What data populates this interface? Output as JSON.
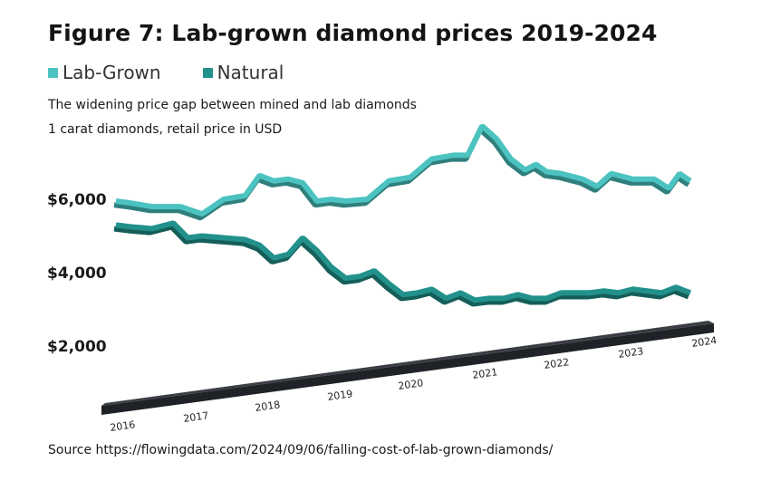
{
  "title": "Figure 7: Lab-grown diamond prices 2019-2024",
  "subtitle": "The widening price gap between mined and lab diamonds",
  "subtitle2": "1 carat diamonds, retail price in USD",
  "source": "Source https://flowingdata.com/2024/09/06/falling-cost-of-lab-grown-diamonds/",
  "colors": {
    "lab_grown": "#4cc3c0",
    "lab_grown_side": "#2f7f7d",
    "natural": "#22918c",
    "natural_side": "#155e5a",
    "axis_bar": "#1f2226"
  },
  "chart_data": {
    "type": "line",
    "title": "Figure 7: Lab-grown diamond prices 2019-2024",
    "ylabel": "retail price in USD",
    "xlabel": "",
    "ylim": [
      2000,
      8000
    ],
    "y_ticks": [
      {
        "value": 6000,
        "label": "$6,000"
      },
      {
        "value": 4000,
        "label": "$4,000"
      },
      {
        "value": 2000,
        "label": "$2,000"
      }
    ],
    "x_ticks": [
      {
        "value": 2016,
        "label": "2016"
      },
      {
        "value": 2017,
        "label": "2017"
      },
      {
        "value": 2018,
        "label": "2018"
      },
      {
        "value": 2019,
        "label": "2019"
      },
      {
        "value": 2020,
        "label": "2020"
      },
      {
        "value": 2021,
        "label": "2021"
      },
      {
        "value": 2022,
        "label": "2022"
      },
      {
        "value": 2023,
        "label": "2023"
      },
      {
        "value": 2024,
        "label": "2024"
      }
    ],
    "series": [
      {
        "name": "Lab-Grown",
        "x": [
          2016.0,
          2016.2,
          2016.5,
          2016.9,
          2017.2,
          2017.5,
          2017.8,
          2018.0,
          2018.2,
          2018.4,
          2018.6,
          2018.8,
          2019.0,
          2019.2,
          2019.5,
          2019.8,
          2020.1,
          2020.4,
          2020.7,
          2020.9,
          2021.1,
          2021.3,
          2021.5,
          2021.7,
          2021.85,
          2022.0,
          2022.2,
          2022.5,
          2022.7,
          2022.9,
          2023.2,
          2023.5,
          2023.7,
          2023.85,
          2024.0
        ],
        "values": [
          5950,
          5900,
          5800,
          5800,
          5600,
          6000,
          6100,
          6650,
          6500,
          6550,
          6450,
          5950,
          6000,
          5950,
          6000,
          6500,
          6600,
          7100,
          7200,
          7200,
          8000,
          7650,
          7100,
          6800,
          6950,
          6750,
          6700,
          6550,
          6350,
          6700,
          6550,
          6550,
          6300,
          6700,
          6500
        ]
      },
      {
        "name": "Natural",
        "x": [
          2016.0,
          2016.2,
          2016.5,
          2016.8,
          2017.0,
          2017.2,
          2017.5,
          2017.8,
          2018.0,
          2018.2,
          2018.4,
          2018.6,
          2018.8,
          2019.0,
          2019.2,
          2019.4,
          2019.6,
          2019.8,
          2020.0,
          2020.2,
          2020.4,
          2020.6,
          2020.8,
          2021.0,
          2021.2,
          2021.4,
          2021.6,
          2021.8,
          2022.0,
          2022.2,
          2022.4,
          2022.6,
          2022.8,
          2023.0,
          2023.2,
          2023.4,
          2023.6,
          2023.8,
          2024.0
        ],
        "values": [
          5300,
          5250,
          5200,
          5350,
          4950,
          5000,
          4950,
          4900,
          4750,
          4400,
          4500,
          4950,
          4600,
          4150,
          3850,
          3900,
          4050,
          3700,
          3400,
          3450,
          3550,
          3300,
          3450,
          3250,
          3300,
          3300,
          3400,
          3300,
          3300,
          3450,
          3450,
          3450,
          3500,
          3450,
          3550,
          3500,
          3450,
          3600,
          3450
        ]
      }
    ]
  }
}
